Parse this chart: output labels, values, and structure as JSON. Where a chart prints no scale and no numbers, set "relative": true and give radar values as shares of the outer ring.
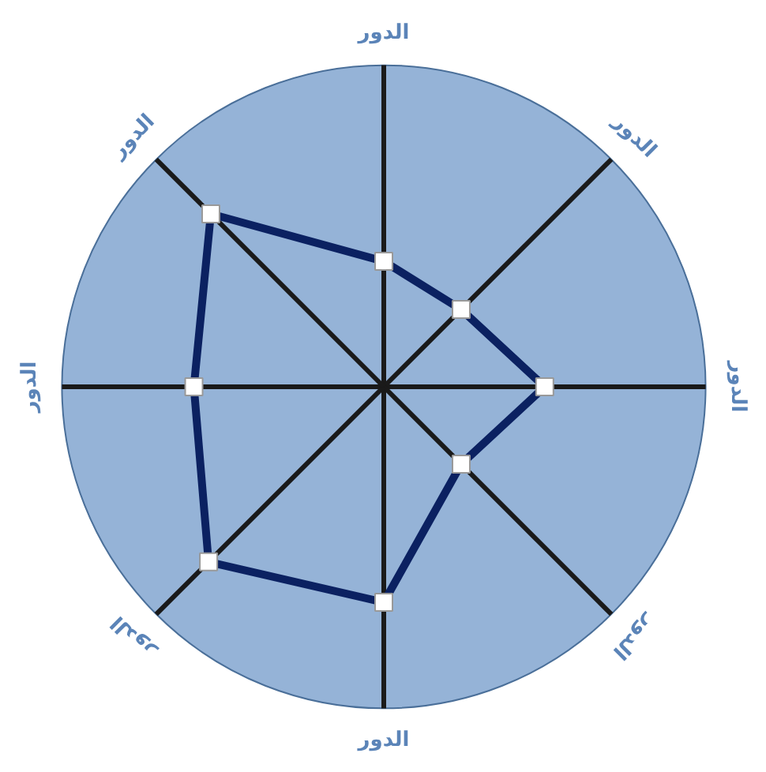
{
  "chart_data": {
    "type": "radar",
    "relative": true,
    "marker": "square",
    "categories": [
      "الدور",
      "الدور",
      "الدور",
      "الدور",
      "الدور",
      "الدور",
      "الدور",
      "الدور"
    ],
    "series": [
      {
        "color": "#0b2161",
        "values": [
          0.39,
          0.34,
          0.5,
          0.34,
          0.67,
          0.77,
          0.59,
          0.76
        ]
      }
    ]
  }
}
